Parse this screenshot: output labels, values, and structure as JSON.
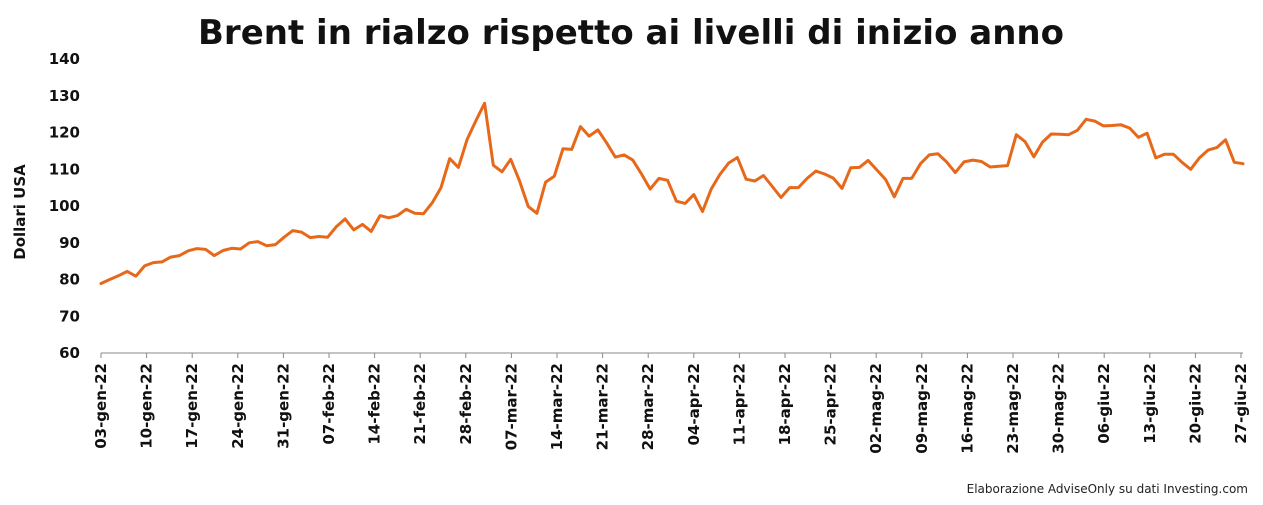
{
  "chart_data": {
    "type": "line",
    "title": "Brent in rialzo rispetto ai livelli di inizio anno",
    "ylabel": "Dollari USA",
    "xlabel": "",
    "source": "Elaborazione AdviseOnly su dati Investing.com",
    "ylim": [
      60,
      140
    ],
    "yticks": [
      60,
      70,
      80,
      90,
      100,
      110,
      120,
      130,
      140
    ],
    "grid": false,
    "line_color": "#E8681A",
    "x_tick_labels": [
      "03-gen-22",
      "10-gen-22",
      "17-gen-22",
      "24-gen-22",
      "31-gen-22",
      "07-feb-22",
      "14-feb-22",
      "21-feb-22",
      "28-feb-22",
      "07-mar-22",
      "14-mar-22",
      "21-mar-22",
      "28-mar-22",
      "04-apr-22",
      "11-apr-22",
      "18-apr-22",
      "25-apr-22",
      "02-mag-22",
      "09-mag-22",
      "16-mag-22",
      "23-mag-22",
      "30-mag-22",
      "06-giu-22",
      "13-giu-22",
      "20-giu-22",
      "27-giu-22"
    ],
    "series": [
      {
        "values": [
          78.9,
          80.0,
          81.0,
          82.2,
          80.9,
          83.7,
          84.6,
          84.8,
          86.1,
          86.5,
          87.8,
          88.4,
          88.2,
          86.5,
          87.9,
          88.5,
          88.3,
          90.0,
          90.3,
          89.2,
          89.5,
          91.5,
          93.3,
          92.9,
          91.4,
          91.7,
          91.5,
          94.4,
          96.5,
          93.5,
          95.0,
          93.1,
          97.4,
          96.8,
          97.4,
          99.1,
          98.0,
          97.9,
          100.9,
          105.0,
          112.9,
          110.5,
          118.1,
          123.2,
          127.98,
          111.1,
          109.3,
          112.7,
          106.9,
          99.9,
          98.0,
          106.5,
          108.1,
          115.6,
          115.4,
          121.6,
          119.0,
          120.7,
          117.2,
          113.3,
          113.9,
          112.5,
          108.7,
          104.6,
          107.5,
          107.0,
          101.3,
          100.7,
          103.1,
          98.5,
          104.6,
          108.6,
          111.7,
          113.2,
          107.3,
          106.8,
          108.3,
          105.3,
          102.3,
          105.0,
          105.0,
          107.5,
          109.5,
          108.7,
          107.6,
          104.8,
          110.4,
          110.5,
          112.4,
          109.8,
          107.2,
          102.5,
          107.5,
          107.5,
          111.5,
          113.9,
          114.2,
          112.0,
          109.1,
          112.0,
          112.5,
          112.1,
          110.6,
          110.8,
          111.0,
          119.4,
          117.5,
          113.4,
          117.4,
          119.6,
          119.5,
          119.4,
          120.6,
          123.6,
          123.1,
          121.8,
          121.9,
          122.1,
          121.2,
          118.7,
          119.8,
          113.1,
          114.1,
          114.1,
          111.9,
          110.0,
          113.1,
          115.2,
          115.9,
          118.0,
          111.9,
          111.5
        ]
      }
    ]
  }
}
